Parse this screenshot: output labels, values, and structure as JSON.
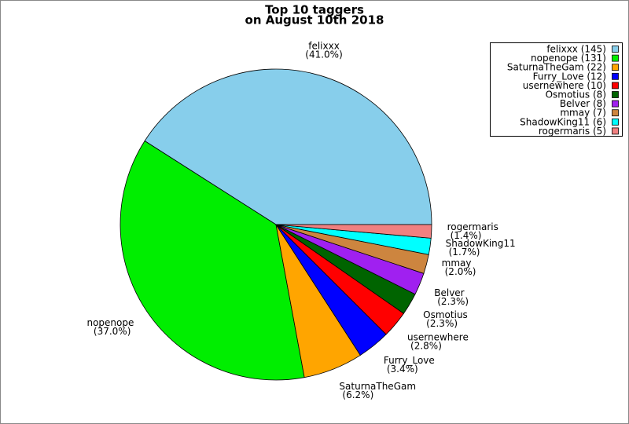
{
  "chart_data": {
    "type": "pie",
    "title": [
      "Top 10 taggers",
      "on August 10th 2018"
    ],
    "categories": [
      "felixxx",
      "nopenope",
      "SaturnaTheGam",
      "Furry_Love",
      "usernewhere",
      "Osmotius",
      "Belver",
      "mmay",
      "ShadowKing11",
      "rogermaris"
    ],
    "values": [
      41.0,
      37.0,
      6.2,
      3.4,
      2.8,
      2.3,
      2.3,
      2.0,
      1.7,
      1.4
    ],
    "value_labels": [
      "(41.0%)",
      "(37.0%)",
      "(6.2%)",
      "(3.4%)",
      "(2.8%)",
      "(2.3%)",
      "(2.3%)",
      "(2.0%)",
      "(1.7%)",
      "(1.4%)"
    ],
    "legend_labels": [
      "felixxx (145)",
      "nopenope (131)",
      "SaturnaTheGam (22)",
      "Furry_Love (12)",
      "usernewhere (10)",
      "Osmotius (8)",
      "Belver (8)",
      "mmay (7)",
      "ShadowKing11 (6)",
      "rogermaris (5)"
    ],
    "colors": [
      "#87ceeb",
      "#00ee00",
      "#ffa500",
      "#0000ff",
      "#ff0000",
      "#006400",
      "#a020f0",
      "#cd853f",
      "#00ffff",
      "#f08080"
    ],
    "legend_position": "upper right"
  }
}
